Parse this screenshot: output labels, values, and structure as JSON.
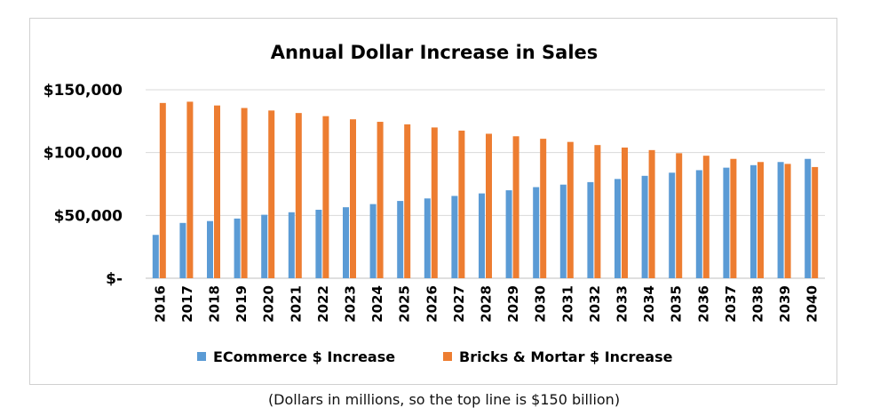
{
  "chart_data": {
    "type": "bar",
    "title": "Annual Dollar Increase in Sales",
    "categories": [
      "2016",
      "2017",
      "2018",
      "2019",
      "2020",
      "2021",
      "2022",
      "2023",
      "2024",
      "2025",
      "2026",
      "2027",
      "2028",
      "2029",
      "2030",
      "2031",
      "2032",
      "2033",
      "2034",
      "2035",
      "2036",
      "2037",
      "2038",
      "2039",
      "2040"
    ],
    "series": [
      {
        "name": "ECommerce $ Increase",
        "color": "#5b9bd5",
        "values": [
          34500,
          44000,
          45500,
          47500,
          50500,
          52500,
          54500,
          56500,
          59000,
          61500,
          63500,
          65500,
          67500,
          70000,
          72500,
          74500,
          76500,
          79000,
          81500,
          84000,
          86000,
          88000,
          90000,
          92500,
          95000
        ]
      },
      {
        "name": "Bricks & Mortar $ Increase",
        "color": "#ed7d31",
        "values": [
          139500,
          140500,
          137500,
          135500,
          133500,
          131500,
          129000,
          126500,
          124500,
          122500,
          120000,
          117500,
          115000,
          113000,
          111000,
          108500,
          106000,
          104000,
          102000,
          99500,
          97500,
          95000,
          92500,
          91000,
          88500
        ]
      }
    ],
    "ylim": [
      0,
      150000
    ],
    "yticks": [
      0,
      50000,
      100000,
      150000
    ],
    "ytick_labels": [
      "$-",
      "$50,000",
      "$100,000",
      "$150,000"
    ],
    "grid": true,
    "legend": "bottom"
  },
  "caption": "(Dollars in millions, so the top line is $150 billion)",
  "colors": {
    "gridline": "#d9d9d9",
    "axis": "#bfbfbf"
  }
}
